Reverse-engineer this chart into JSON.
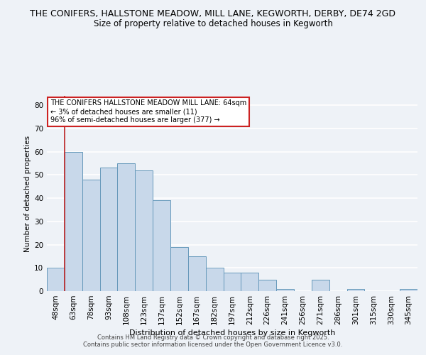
{
  "title1": "THE CONIFERS, HALLSTONE MEADOW, MILL LANE, KEGWORTH, DERBY, DE74 2GD",
  "title2": "Size of property relative to detached houses in Kegworth",
  "xlabel": "Distribution of detached houses by size in Kegworth",
  "ylabel": "Number of detached properties",
  "categories": [
    "48sqm",
    "63sqm",
    "78sqm",
    "93sqm",
    "108sqm",
    "123sqm",
    "137sqm",
    "152sqm",
    "167sqm",
    "182sqm",
    "197sqm",
    "212sqm",
    "226sqm",
    "241sqm",
    "256sqm",
    "271sqm",
    "286sqm",
    "301sqm",
    "315sqm",
    "330sqm",
    "345sqm"
  ],
  "values": [
    10,
    60,
    48,
    53,
    55,
    52,
    39,
    19,
    15,
    10,
    8,
    8,
    5,
    1,
    0,
    5,
    0,
    1,
    0,
    0,
    1
  ],
  "bar_color": "#c8d8ea",
  "bar_edge_color": "#6699bb",
  "vline_x_idx": 1,
  "vline_color": "#bb2222",
  "annotation_title": "THE CONIFERS HALLSTONE MEADOW MILL LANE: 64sqm",
  "annotation_line1": "← 3% of detached houses are smaller (11)",
  "annotation_line2": "96% of semi-detached houses are larger (377) →",
  "annotation_box_color": "#ffffff",
  "annotation_box_edge": "#cc2222",
  "ylim": [
    0,
    84
  ],
  "yticks": [
    0,
    10,
    20,
    30,
    40,
    50,
    60,
    70,
    80
  ],
  "footnote1": "Contains HM Land Registry data © Crown copyright and database right 2025.",
  "footnote2": "Contains public sector information licensed under the Open Government Licence v3.0.",
  "bg_color": "#eef2f7",
  "grid_color": "#ffffff",
  "title_fontsize": 9,
  "subtitle_fontsize": 8.5
}
